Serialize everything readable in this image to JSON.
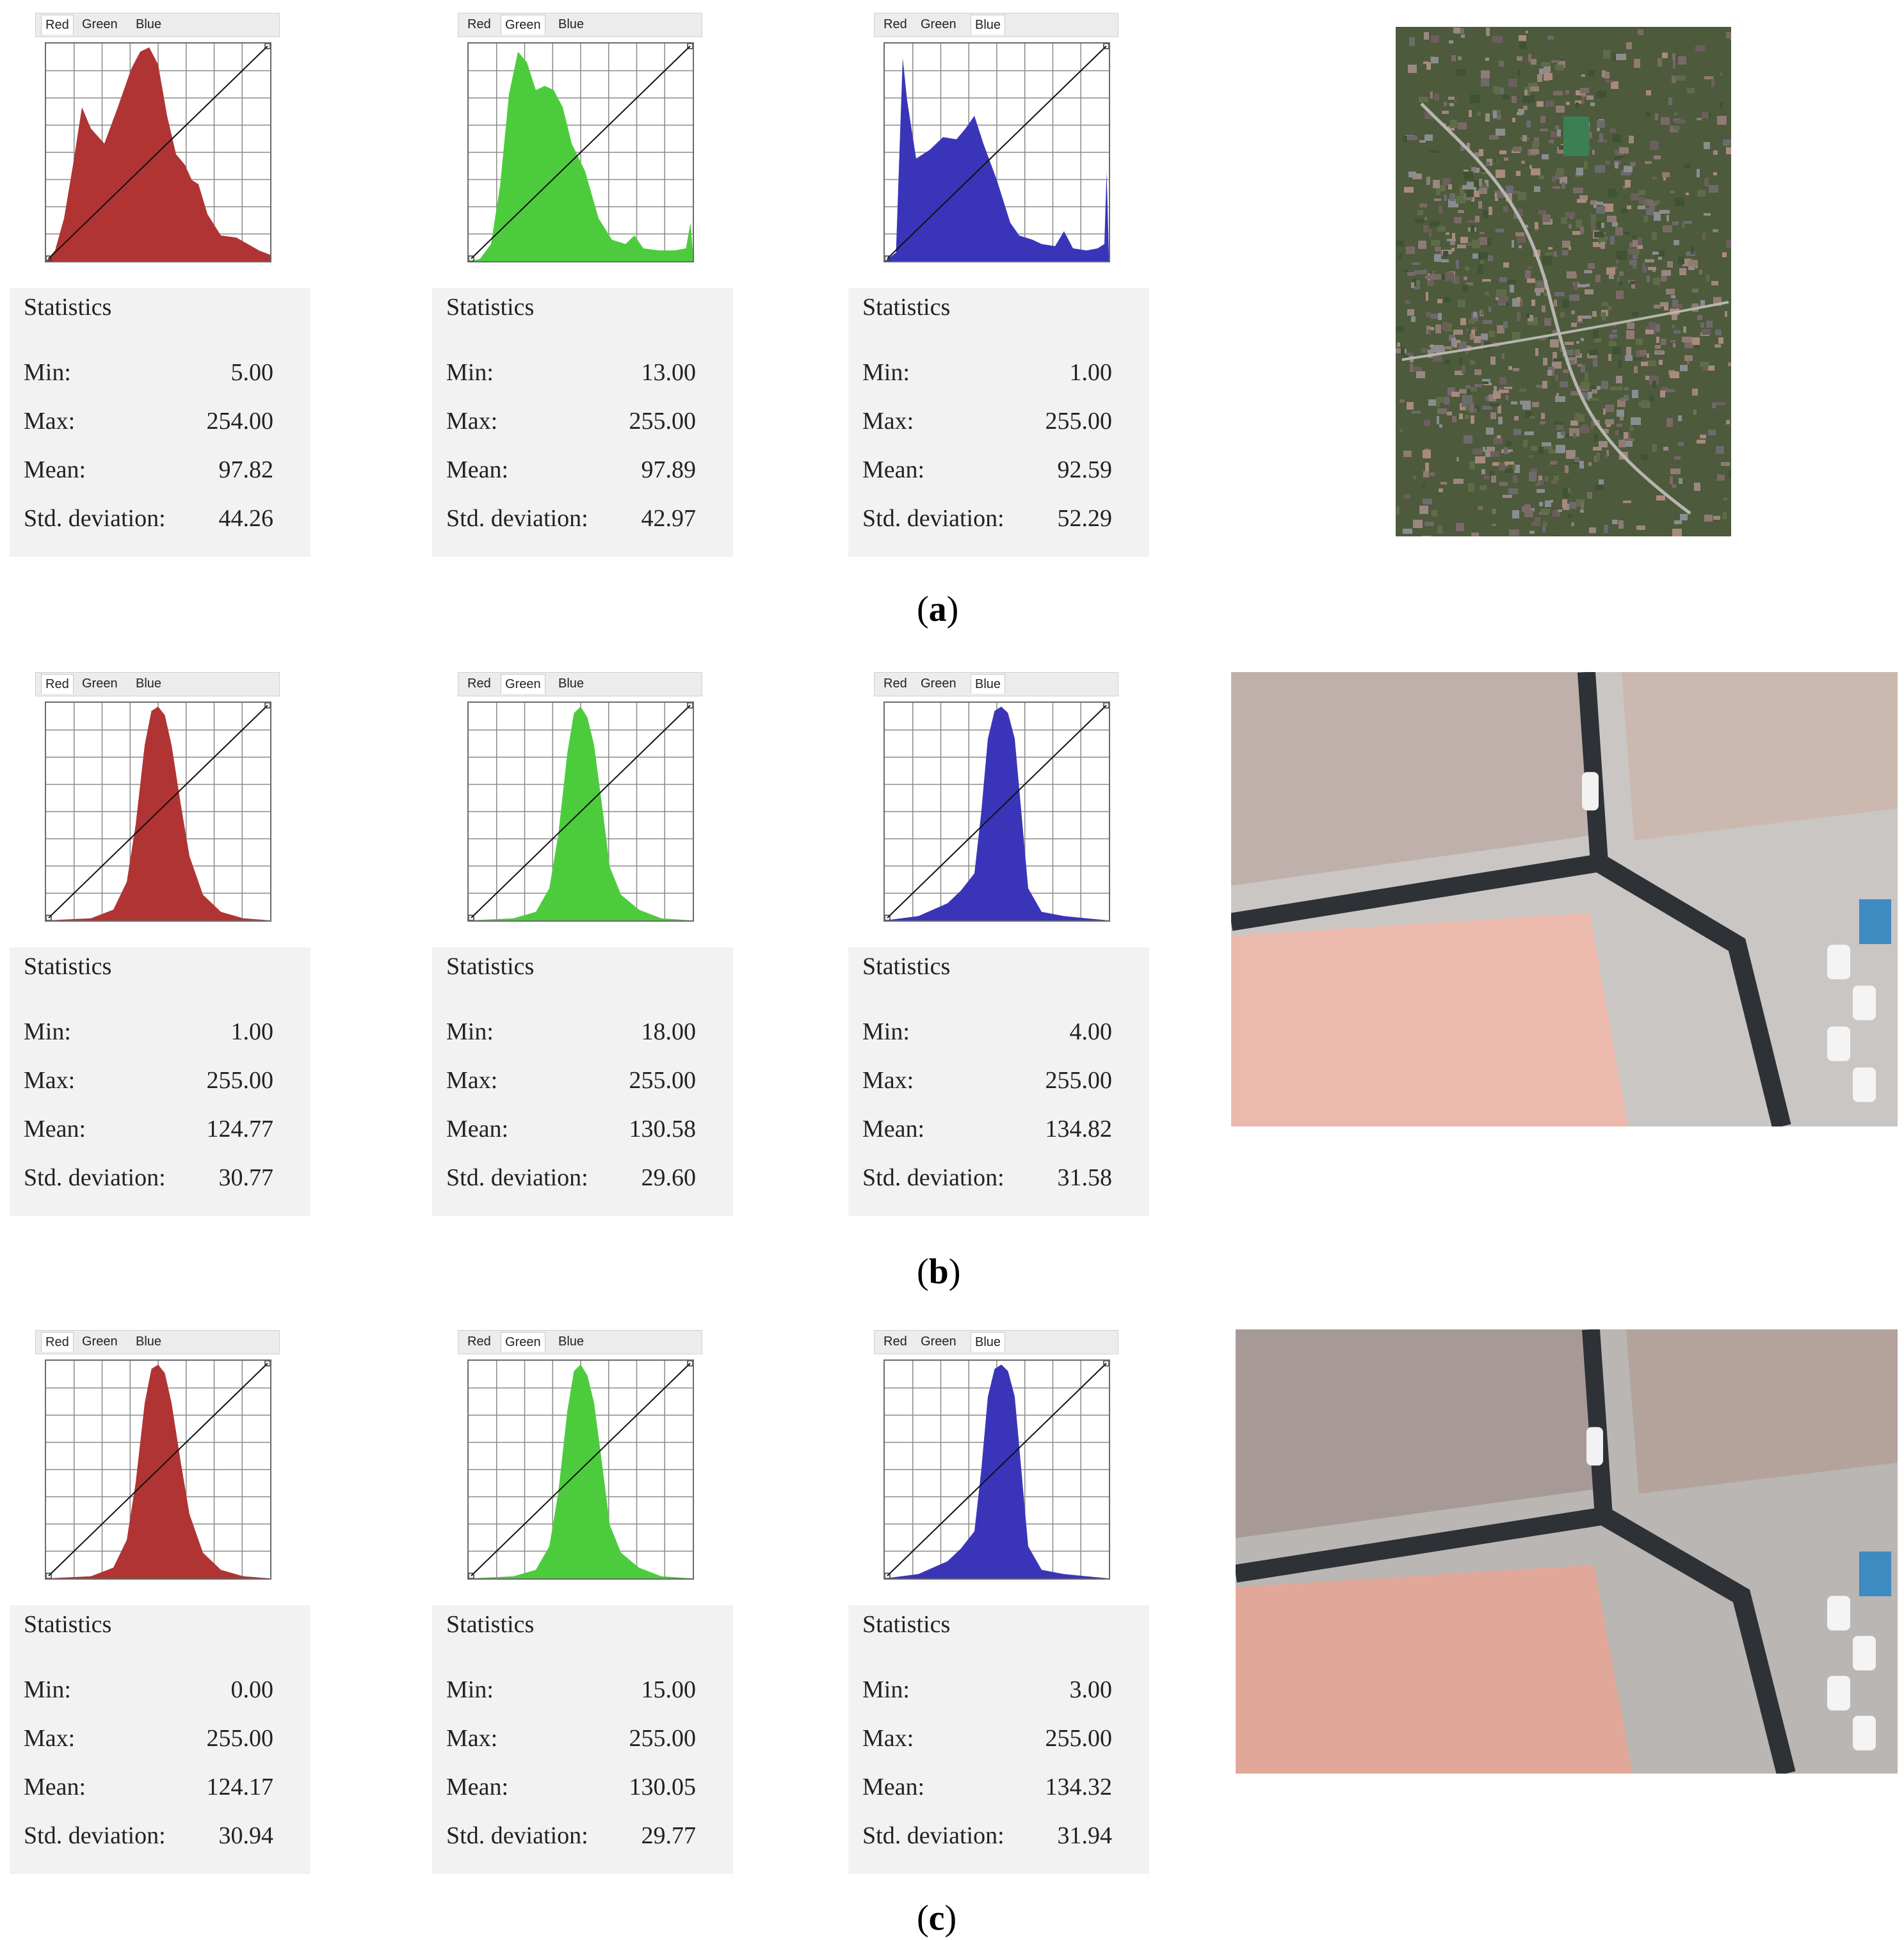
{
  "tab_labels": [
    "Red",
    "Green",
    "Blue"
  ],
  "stats_heading": "Statistics",
  "stat_labels": [
    "Min:",
    "Max:",
    "Mean:",
    "Std. deviation:"
  ],
  "colors": {
    "red": "#b03434",
    "green": "#4ccc3c",
    "blue": "#3a35b8"
  },
  "panels": [
    {
      "caption_open": "(",
      "caption_letter": "a",
      "caption_close": ")",
      "image_subject": "aerial-town-overview",
      "channels": [
        {
          "channel": "Red",
          "active_tab": 0,
          "min": "5.00",
          "max": "254.00",
          "mean": "97.82",
          "std": "44.26"
        },
        {
          "channel": "Green",
          "active_tab": 1,
          "min": "13.00",
          "max": "255.00",
          "mean": "97.89",
          "std": "42.97"
        },
        {
          "channel": "Blue",
          "active_tab": 2,
          "min": "1.00",
          "max": "255.00",
          "mean": "92.59",
          "std": "52.29"
        }
      ]
    },
    {
      "caption_open": "(",
      "caption_letter": "b",
      "caption_close": ")",
      "image_subject": "aerial-street-intersection-closeup",
      "channels": [
        {
          "channel": "Red",
          "active_tab": 0,
          "min": "1.00",
          "max": "255.00",
          "mean": "124.77",
          "std": "30.77"
        },
        {
          "channel": "Green",
          "active_tab": 1,
          "min": "18.00",
          "max": "255.00",
          "mean": "130.58",
          "std": "29.60"
        },
        {
          "channel": "Blue",
          "active_tab": 2,
          "min": "4.00",
          "max": "255.00",
          "mean": "134.82",
          "std": "31.58"
        }
      ]
    },
    {
      "caption_open": "(",
      "caption_letter": "c",
      "caption_close": ")",
      "image_subject": "aerial-street-intersection-closeup-enhanced",
      "channels": [
        {
          "channel": "Red",
          "active_tab": 0,
          "min": "0.00",
          "max": "255.00",
          "mean": "124.17",
          "std": "30.94"
        },
        {
          "channel": "Green",
          "active_tab": 1,
          "min": "15.00",
          "max": "255.00",
          "mean": "130.05",
          "std": "29.77"
        },
        {
          "channel": "Blue",
          "active_tab": 2,
          "min": "3.00",
          "max": "255.00",
          "mean": "134.32",
          "std": "31.94"
        }
      ]
    }
  ]
}
